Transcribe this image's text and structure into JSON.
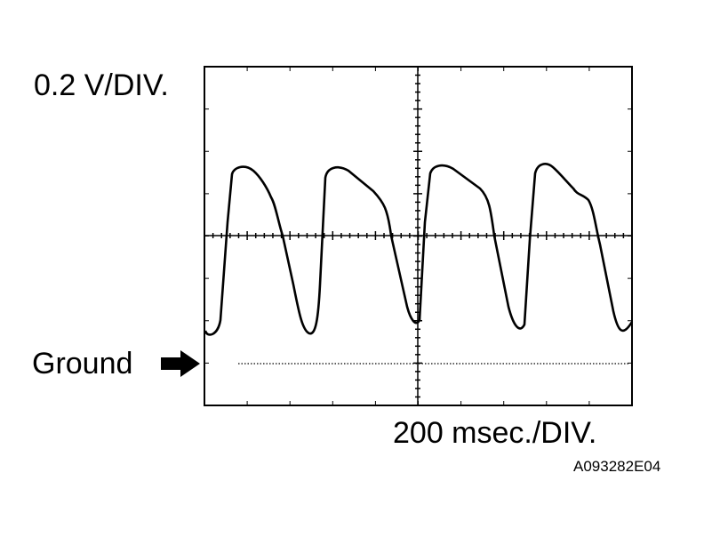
{
  "labels": {
    "voltage_scale": "0.2 V/DIV.",
    "ground": "Ground",
    "time_scale": "200 msec./DIV.",
    "figure_id": "A093282E04"
  }
}
